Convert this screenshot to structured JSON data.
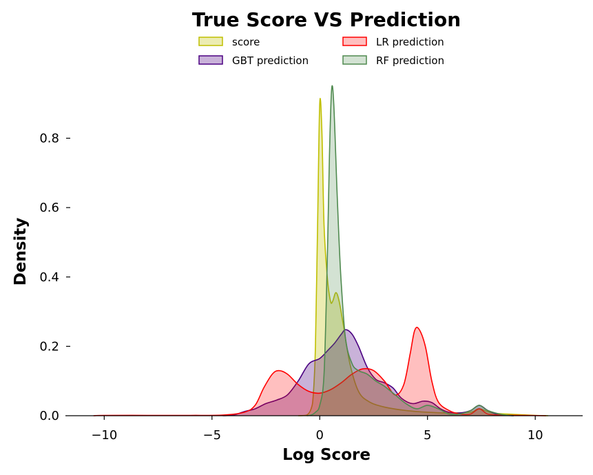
{
  "chart_data": {
    "type": "area",
    "title": "True Score VS Prediction",
    "xlabel": "Log Score",
    "ylabel": "Density",
    "xlim": [
      -11.8,
      12.2
    ],
    "ylim": [
      0,
      0.96
    ],
    "xticks": [
      -10,
      -5,
      0,
      5,
      10
    ],
    "xtick_labels": [
      "−10",
      "−5",
      "0",
      "5",
      "10"
    ],
    "yticks": [
      0.0,
      0.2,
      0.4,
      0.6,
      0.8
    ],
    "ytick_labels": [
      "0.0",
      "0.2",
      "0.4",
      "0.6",
      "0.8"
    ],
    "grid": false,
    "legend_position": "top-center",
    "series": [
      {
        "name": "score",
        "line_color": "#bfbf00",
        "fill_color": "#bfbf00",
        "fill_opacity": 0.3,
        "points": [
          [
            -1,
            0.0
          ],
          [
            -0.6,
            0.002
          ],
          [
            -0.4,
            0.02
          ],
          [
            -0.3,
            0.06
          ],
          [
            -0.2,
            0.2
          ],
          [
            -0.1,
            0.55
          ],
          [
            0,
            0.9
          ],
          [
            0.1,
            0.82
          ],
          [
            0.2,
            0.55
          ],
          [
            0.35,
            0.4
          ],
          [
            0.5,
            0.33
          ],
          [
            0.6,
            0.33
          ],
          [
            0.75,
            0.355
          ],
          [
            0.9,
            0.33
          ],
          [
            1.1,
            0.26
          ],
          [
            1.4,
            0.15
          ],
          [
            1.8,
            0.07
          ],
          [
            2.3,
            0.04
          ],
          [
            3,
            0.025
          ],
          [
            4,
            0.015
          ],
          [
            5,
            0.01
          ],
          [
            6,
            0.008
          ],
          [
            7,
            0.01
          ],
          [
            7.4,
            0.02
          ],
          [
            8,
            0.008
          ],
          [
            9,
            0.004
          ],
          [
            10,
            0.001
          ],
          [
            10.6,
            0.0
          ]
        ]
      },
      {
        "name": "GBT prediction",
        "line_color": "#4b0082",
        "fill_color": "#4b0082",
        "fill_opacity": 0.3,
        "points": [
          [
            -4.5,
            0.0
          ],
          [
            -4,
            0.002
          ],
          [
            -3.5,
            0.012
          ],
          [
            -3,
            0.02
          ],
          [
            -2.5,
            0.035
          ],
          [
            -2,
            0.045
          ],
          [
            -1.5,
            0.06
          ],
          [
            -1,
            0.1
          ],
          [
            -0.5,
            0.15
          ],
          [
            0,
            0.165
          ],
          [
            0.4,
            0.19
          ],
          [
            0.7,
            0.21
          ],
          [
            1,
            0.235
          ],
          [
            1.2,
            0.248
          ],
          [
            1.5,
            0.235
          ],
          [
            1.8,
            0.2
          ],
          [
            2.2,
            0.14
          ],
          [
            2.6,
            0.105
          ],
          [
            3,
            0.095
          ],
          [
            3.4,
            0.08
          ],
          [
            3.8,
            0.05
          ],
          [
            4.3,
            0.035
          ],
          [
            4.8,
            0.042
          ],
          [
            5.2,
            0.038
          ],
          [
            5.6,
            0.02
          ],
          [
            6,
            0.01
          ],
          [
            6.5,
            0.008
          ],
          [
            7,
            0.015
          ],
          [
            7.4,
            0.03
          ],
          [
            7.8,
            0.015
          ],
          [
            8.3,
            0.003
          ],
          [
            9,
            0.0
          ]
        ]
      },
      {
        "name": "LR prediction",
        "line_color": "#ff0000",
        "fill_color": "#ff0000",
        "fill_opacity": 0.25,
        "points": [
          [
            -10.5,
            0.0
          ],
          [
            -10,
            0.001
          ],
          [
            -8,
            0.001
          ],
          [
            -6,
            0.001
          ],
          [
            -4.5,
            0.002
          ],
          [
            -3.5,
            0.01
          ],
          [
            -3,
            0.03
          ],
          [
            -2.6,
            0.08
          ],
          [
            -2.2,
            0.12
          ],
          [
            -1.9,
            0.13
          ],
          [
            -1.5,
            0.12
          ],
          [
            -1,
            0.09
          ],
          [
            -0.5,
            0.07
          ],
          [
            0,
            0.065
          ],
          [
            0.5,
            0.075
          ],
          [
            1,
            0.095
          ],
          [
            1.5,
            0.12
          ],
          [
            2,
            0.135
          ],
          [
            2.5,
            0.13
          ],
          [
            3,
            0.1
          ],
          [
            3.5,
            0.06
          ],
          [
            3.9,
            0.09
          ],
          [
            4.2,
            0.18
          ],
          [
            4.4,
            0.245
          ],
          [
            4.6,
            0.25
          ],
          [
            4.9,
            0.2
          ],
          [
            5.2,
            0.1
          ],
          [
            5.5,
            0.04
          ],
          [
            6,
            0.015
          ],
          [
            6.5,
            0.005
          ],
          [
            7,
            0.005
          ],
          [
            7.4,
            0.02
          ],
          [
            7.8,
            0.005
          ],
          [
            8.5,
            0.002
          ],
          [
            9.5,
            0.001
          ],
          [
            10.5,
            0.0
          ]
        ]
      },
      {
        "name": "RF prediction",
        "line_color": "#4f8a4f",
        "fill_color": "#4f8a4f",
        "fill_opacity": 0.25,
        "points": [
          [
            -0.6,
            0.0
          ],
          [
            -0.4,
            0.002
          ],
          [
            -0.2,
            0.01
          ],
          [
            0,
            0.03
          ],
          [
            0.2,
            0.12
          ],
          [
            0.35,
            0.45
          ],
          [
            0.45,
            0.75
          ],
          [
            0.55,
            0.94
          ],
          [
            0.65,
            0.9
          ],
          [
            0.8,
            0.65
          ],
          [
            0.9,
            0.5
          ],
          [
            1,
            0.38
          ],
          [
            1.2,
            0.22
          ],
          [
            1.5,
            0.15
          ],
          [
            1.8,
            0.13
          ],
          [
            2.2,
            0.12
          ],
          [
            2.6,
            0.1
          ],
          [
            3,
            0.085
          ],
          [
            3.5,
            0.06
          ],
          [
            4,
            0.035
          ],
          [
            4.5,
            0.02
          ],
          [
            5,
            0.03
          ],
          [
            5.5,
            0.02
          ],
          [
            6,
            0.005
          ],
          [
            6.5,
            0.005
          ],
          [
            7,
            0.015
          ],
          [
            7.4,
            0.03
          ],
          [
            7.8,
            0.015
          ],
          [
            8.5,
            0.003
          ],
          [
            9,
            0.0
          ]
        ]
      }
    ]
  }
}
